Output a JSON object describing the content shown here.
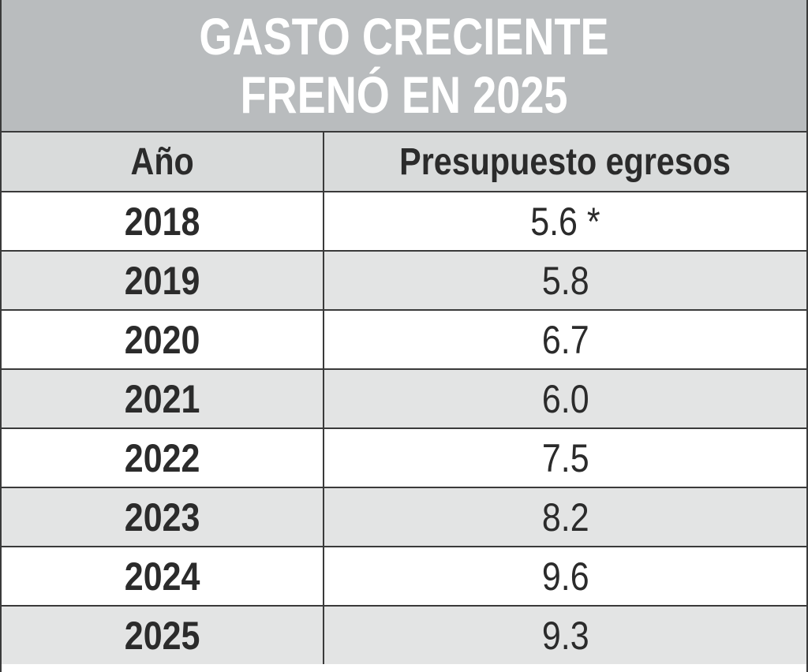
{
  "title_lines": [
    "GASTO CRECIENTE",
    "FRENÓ EN 2025"
  ],
  "chart_data": {
    "type": "table",
    "title": "GASTO CRECIENTE FRENÓ EN 2025",
    "columns": [
      "Año",
      "Presupuesto egresos"
    ],
    "rows": [
      {
        "year": "2018",
        "value": "5.6 *"
      },
      {
        "year": "2019",
        "value": "5.8"
      },
      {
        "year": "2020",
        "value": "6.7"
      },
      {
        "year": "2021",
        "value": "6.0"
      },
      {
        "year": "2022",
        "value": "7.5"
      },
      {
        "year": "2023",
        "value": "8.2"
      },
      {
        "year": "2024",
        "value": "9.6"
      },
      {
        "year": "2025",
        "value": "9.3"
      }
    ]
  },
  "colors": {
    "title_bg": "#b9bcbe",
    "header_bg": "#d9dbdb",
    "row_alt_bg": "#e3e4e4",
    "text": "#2b2b2b",
    "border": "#3a3a3a"
  }
}
